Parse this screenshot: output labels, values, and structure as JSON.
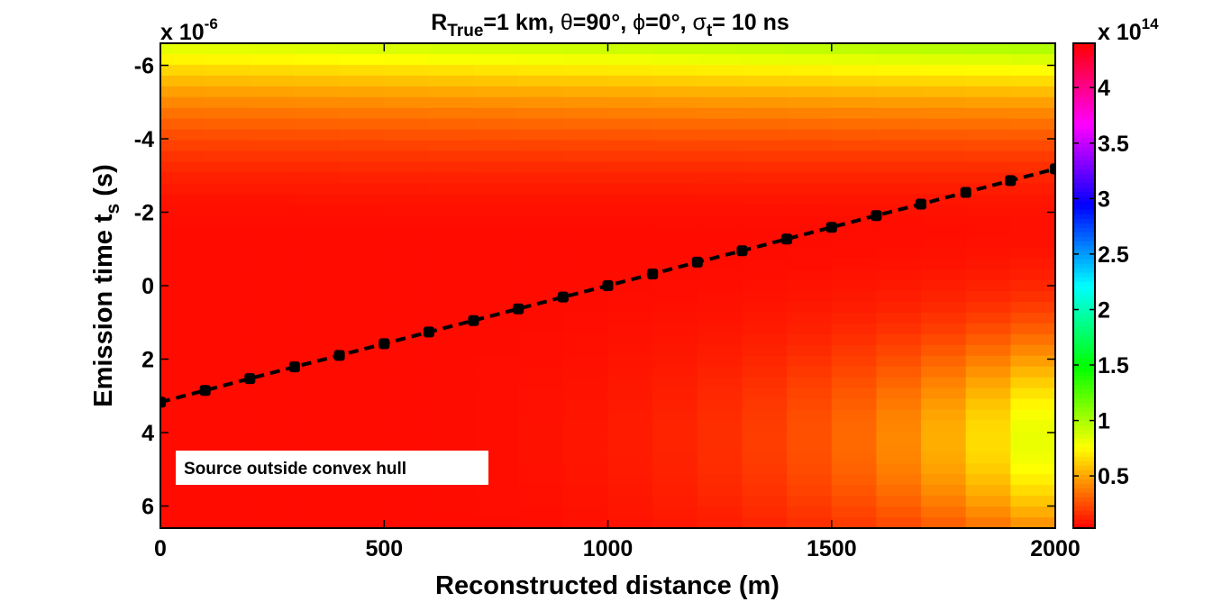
{
  "chart_data": {
    "type": "heatmap",
    "title": {
      "r": "R",
      "r_sub": "True",
      "r_val": "=1 km, ",
      "theta_sym": "θ",
      "theta_val": "=90°, ",
      "phi_sym": "ϕ",
      "phi_val": "=0°, ",
      "sigma_sym": "σ",
      "sigma_sub": "t",
      "sigma_val": "= 10 ns"
    },
    "xlabel": "Reconstructed distance (m)",
    "ylabel": {
      "main": "Emission time t",
      "sub": "s",
      "unit": " (s)"
    },
    "y_exponent": {
      "base": "x 10",
      "power": "-6"
    },
    "xlim": [
      0,
      2000
    ],
    "ylim": [
      6.6,
      -6.6
    ],
    "y_reversed": true,
    "x_ticks": [
      0,
      500,
      1000,
      1500,
      2000
    ],
    "x_tick_labels": [
      "0",
      "500",
      "1000",
      "1500",
      "2000"
    ],
    "y_ticks": [
      -6,
      -4,
      -2,
      0,
      2,
      4,
      6
    ],
    "y_tick_labels": [
      "-6",
      "-4",
      "-2",
      "0",
      "2",
      "4",
      "6"
    ],
    "colorbar": {
      "exponent": {
        "base": "x 10",
        "power": "14"
      },
      "range": [
        0.03,
        4.4
      ],
      "ticks": [
        0.5,
        1,
        1.5,
        2,
        2.5,
        3,
        3.5,
        4
      ],
      "tick_labels": [
        "0.5",
        "1",
        "1.5",
        "2",
        "2.5",
        "3",
        "3.5",
        "4"
      ],
      "colormap": [
        "#ff0000",
        "#ffff00",
        "#00ff00",
        "#00ffff",
        "#0000ff",
        "#ff00ff",
        "#ff0000"
      ]
    },
    "line_series": {
      "name": "reconstructed emission time",
      "style": "black dashed with square markers",
      "x": [
        0,
        100,
        200,
        300,
        400,
        500,
        600,
        700,
        800,
        900,
        1000,
        1100,
        1200,
        1300,
        1400,
        1500,
        1600,
        1700,
        1800,
        1900,
        2000
      ],
      "y": [
        3.17,
        2.85,
        2.53,
        2.21,
        1.9,
        1.58,
        1.26,
        0.95,
        0.63,
        0.31,
        0.0,
        -0.32,
        -0.64,
        -0.95,
        -1.27,
        -1.59,
        -1.91,
        -2.22,
        -2.54,
        -2.86,
        -3.18
      ]
    },
    "annotation": "Source outside convex hull"
  }
}
